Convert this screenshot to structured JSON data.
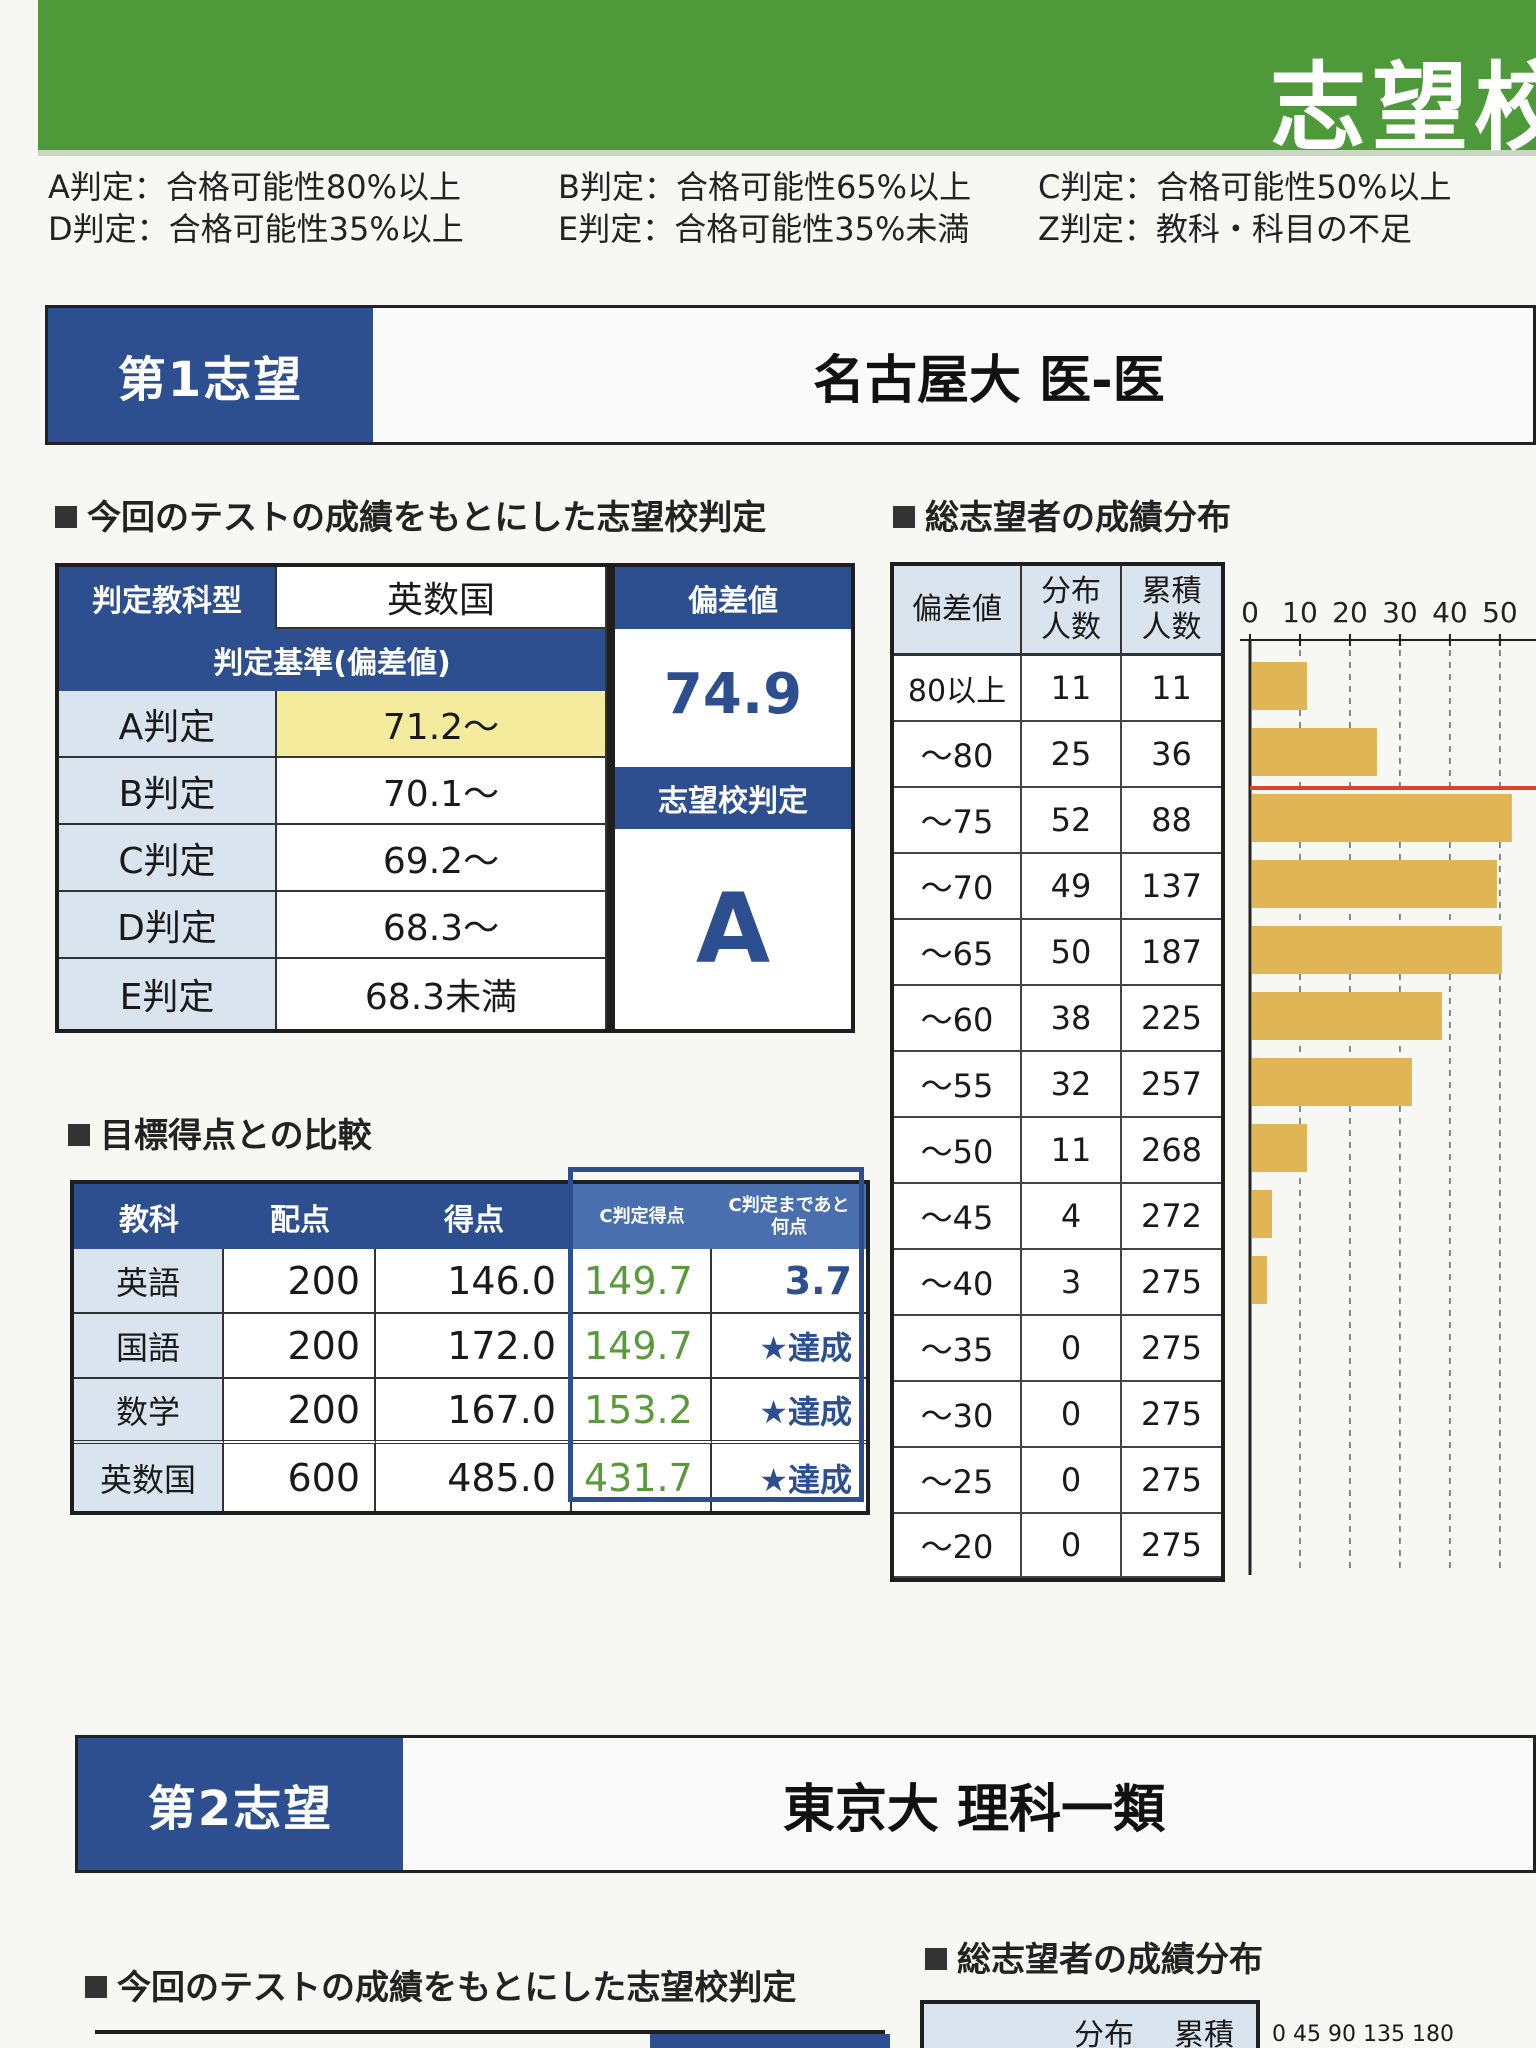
{
  "header": {
    "title": "志望校"
  },
  "legend": [
    "A判定：合格可能性80%以上",
    "B判定：合格可能性65%以上",
    "C判定：合格可能性50%以上",
    "D判定：合格可能性35%以上",
    "E判定：合格可能性35%未満",
    "Z判定：教科・科目の不足"
  ],
  "choice1": {
    "label": "第1志望",
    "name": "名古屋大 医-医",
    "section_judgement": "今回のテストの成績をもとにした志望校判定",
    "section_distribution": "総志望者の成績分布",
    "section_compare": "目標得点との比較",
    "judgement": {
      "subject_type_label": "判定教科型",
      "subject_type_value": "英数国",
      "criteria_label": "判定基準(偏差値)",
      "deviation_label": "偏差値",
      "deviation_value": "74.9",
      "result_label": "志望校判定",
      "result_value": "A",
      "rows": [
        {
          "label": "A判定",
          "value": "71.2〜"
        },
        {
          "label": "B判定",
          "value": "70.1〜"
        },
        {
          "label": "C判定",
          "value": "69.2〜"
        },
        {
          "label": "D判定",
          "value": "68.3〜"
        },
        {
          "label": "E判定",
          "value": "68.3未満"
        }
      ]
    },
    "compare": {
      "headers": [
        "教科",
        "配点",
        "得点",
        "C判定得点",
        "C判定まであと何点"
      ],
      "rows": [
        {
          "subject": "英語",
          "max": "200",
          "score": "146.0",
          "c_score": "149.7",
          "remaining": "3.7"
        },
        {
          "subject": "国語",
          "max": "200",
          "score": "172.0",
          "c_score": "149.7",
          "remaining": "★達成"
        },
        {
          "subject": "数学",
          "max": "200",
          "score": "167.0",
          "c_score": "153.2",
          "remaining": "★達成"
        },
        {
          "subject": "英数国",
          "max": "600",
          "score": "485.0",
          "c_score": "431.7",
          "remaining": "★達成"
        }
      ]
    },
    "distribution": {
      "headers": [
        "偏差値",
        "分布人数",
        "累積人数"
      ],
      "rows": [
        {
          "range": "80以上",
          "count": "11",
          "cum": "11"
        },
        {
          "range": "〜80",
          "count": "25",
          "cum": "36"
        },
        {
          "range": "〜75",
          "count": "52",
          "cum": "88"
        },
        {
          "range": "〜70",
          "count": "49",
          "cum": "137"
        },
        {
          "range": "〜65",
          "count": "50",
          "cum": "187"
        },
        {
          "range": "〜60",
          "count": "38",
          "cum": "225"
        },
        {
          "range": "〜55",
          "count": "32",
          "cum": "257"
        },
        {
          "range": "〜50",
          "count": "11",
          "cum": "268"
        },
        {
          "range": "〜45",
          "count": "4",
          "cum": "272"
        },
        {
          "range": "〜40",
          "count": "3",
          "cum": "275"
        },
        {
          "range": "〜35",
          "count": "0",
          "cum": "275"
        },
        {
          "range": "〜30",
          "count": "0",
          "cum": "275"
        },
        {
          "range": "〜25",
          "count": "0",
          "cum": "275"
        },
        {
          "range": "〜20",
          "count": "0",
          "cum": "275"
        }
      ]
    }
  },
  "chart_data": {
    "type": "bar",
    "orientation": "horizontal",
    "categories": [
      "80以上",
      "〜80",
      "〜75",
      "〜70",
      "〜65",
      "〜60",
      "〜55",
      "〜50",
      "〜45",
      "〜40",
      "〜35",
      "〜30",
      "〜25",
      "〜20"
    ],
    "values": [
      11,
      25,
      52,
      49,
      50,
      38,
      32,
      11,
      4,
      3,
      0,
      0,
      0,
      0
    ],
    "x_ticks": [
      "0",
      "10",
      "20",
      "30",
      "40",
      "50"
    ],
    "xlim": [
      0,
      55
    ],
    "marker_between": [
      "〜80",
      "〜75"
    ],
    "bar_color": "#e0b556",
    "marker_color": "#d9432b"
  },
  "choice2": {
    "label": "第2志望",
    "name": "東京大 理科一類",
    "section_judgement": "今回のテストの成績をもとにした志望校判定",
    "section_distribution": "総志望者の成績分布",
    "dist_headers": [
      "分布",
      "累積"
    ],
    "x_ticks": "0 45 90 135 180"
  }
}
